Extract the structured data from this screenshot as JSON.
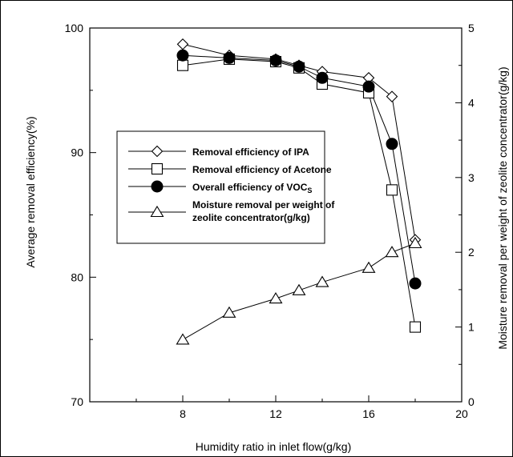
{
  "chart_data": {
    "type": "line",
    "xlabel": "Humidity ratio in inlet flow(g/kg)",
    "ylabel_left": "Average removal efficiency(%)",
    "ylabel_right": "Moisture removal per weight of zeolite concentrator(g/kg)",
    "xlim": [
      4,
      20
    ],
    "ylim_left": [
      70,
      100
    ],
    "ylim_right": [
      0,
      5
    ],
    "x_ticks": [
      8,
      12,
      16,
      20
    ],
    "y_ticks_left": [
      70,
      80,
      90,
      100
    ],
    "y_ticks_right": [
      0,
      1,
      2,
      3,
      4,
      5
    ],
    "grid": false,
    "legend_position": "center-left",
    "series": [
      {
        "name": "Removal efficiency of IPA",
        "marker": "diamond-open",
        "axis": "left",
        "x": [
          8,
          10,
          12,
          13,
          14,
          16,
          17,
          18
        ],
        "y": [
          98.7,
          97.8,
          97.5,
          97.0,
          96.5,
          96.0,
          94.5,
          83.0
        ]
      },
      {
        "name": "Removal efficiency of Acetone",
        "marker": "square-open",
        "axis": "left",
        "x": [
          8,
          10,
          12,
          13,
          14,
          16,
          17,
          18
        ],
        "y": [
          97.0,
          97.5,
          97.3,
          96.8,
          95.5,
          94.8,
          87.0,
          76.0
        ]
      },
      {
        "name": "Overall efficiency of VOC",
        "name_subscript": "S",
        "marker": "circle-filled",
        "axis": "left",
        "x": [
          8,
          10,
          12,
          13,
          14,
          16,
          17,
          18
        ],
        "y": [
          97.8,
          97.6,
          97.4,
          96.9,
          96.0,
          95.3,
          90.7,
          79.5
        ]
      },
      {
        "name": "Moisture removal per weight of",
        "name_line2": "zeolite concentrator(g/kg)",
        "marker": "triangle-open",
        "axis": "right",
        "x": [
          8,
          10,
          12,
          13,
          14,
          16,
          17,
          18
        ],
        "y": [
          0.83,
          1.19,
          1.38,
          1.49,
          1.6,
          1.79,
          2.0,
          2.12
        ]
      }
    ]
  }
}
